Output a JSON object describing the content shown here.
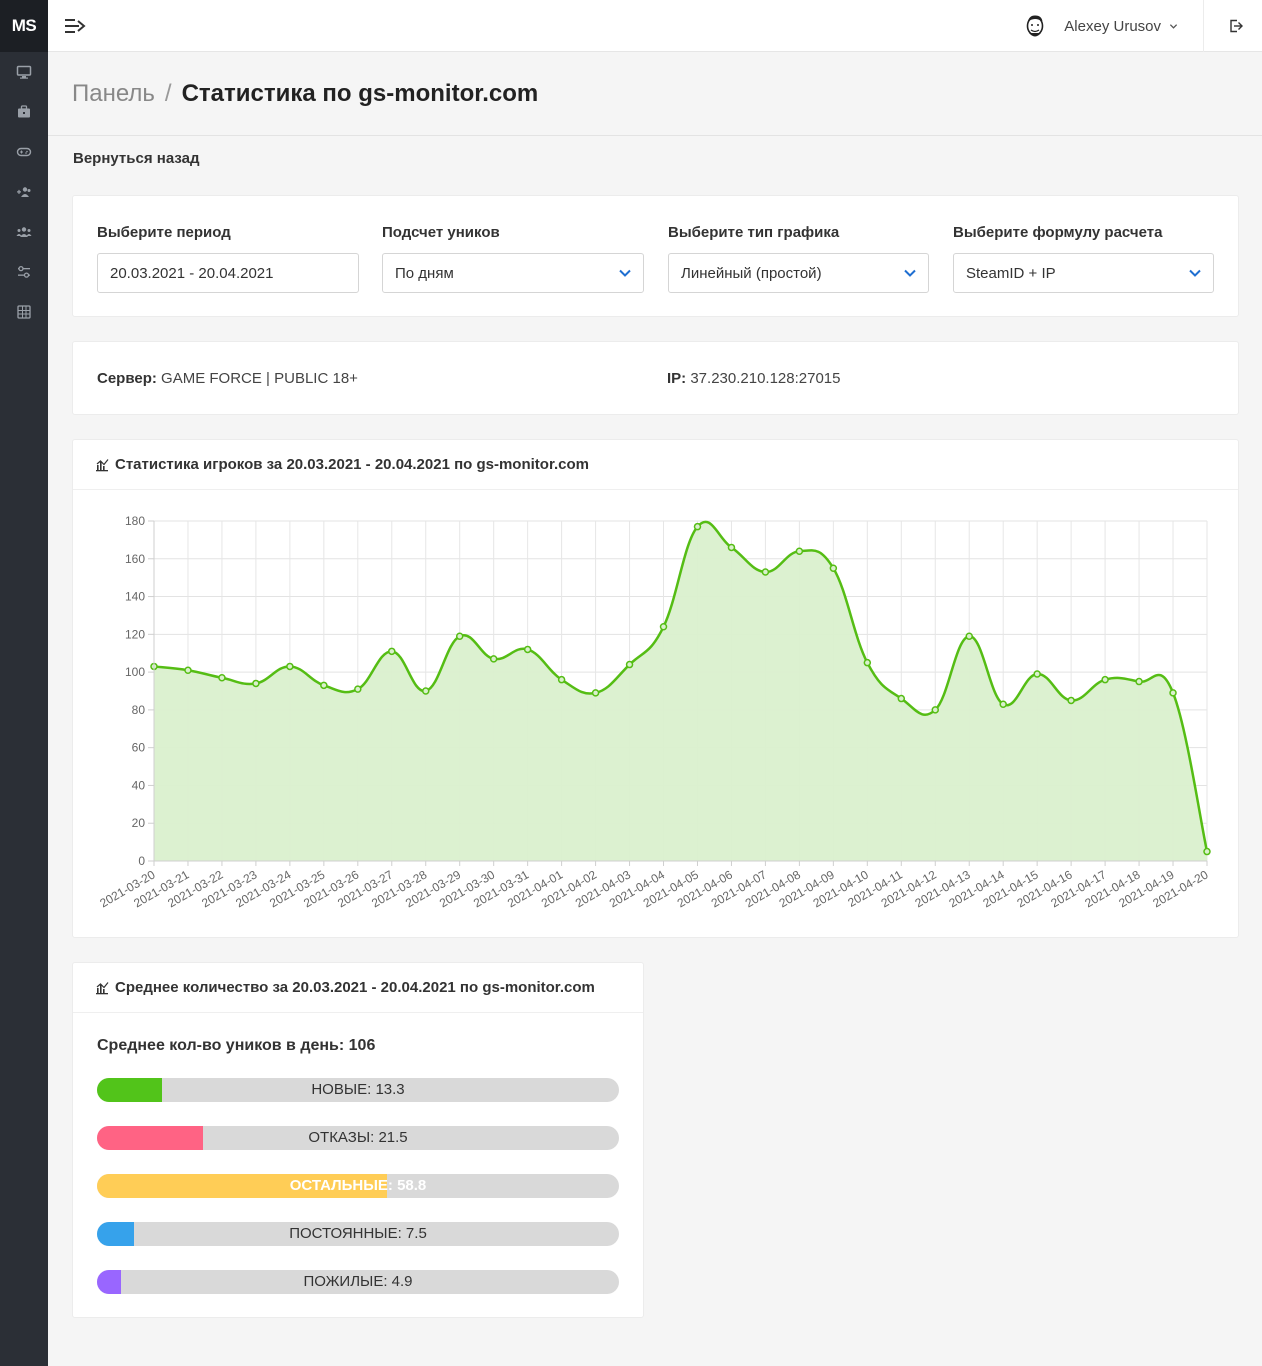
{
  "sidebar": {
    "logo": "MS",
    "icons": [
      "monitor-icon",
      "briefcase-icon",
      "gamepad-icon",
      "users-add-icon",
      "users-icon",
      "sliders-icon",
      "grid-icon"
    ]
  },
  "header": {
    "user_name": "Alexey Urusov"
  },
  "breadcrumb": {
    "root": "Панель",
    "separator": "/",
    "current": "Статистика по gs-monitor.com"
  },
  "back_link": "Вернуться назад",
  "filters": {
    "period": {
      "label": "Выберите период",
      "value": "20.03.2021 - 20.04.2021"
    },
    "unique_count": {
      "label": "Подсчет уников",
      "value": "По дням"
    },
    "chart_type": {
      "label": "Выберите тип графика",
      "value": "Линейный (простой)"
    },
    "formula": {
      "label": "Выберите формулу расчета",
      "value": "SteamID + IP"
    }
  },
  "server_info": {
    "server_label": "Сервер:",
    "server_value": "GAME FORCE | PUBLIC 18+",
    "ip_label": "IP:",
    "ip_value": "37.230.210.128:27015"
  },
  "stats_card": {
    "title": "Статистика игроков за 20.03.2021 - 20.04.2021 по gs-monitor.com"
  },
  "chart_data": {
    "type": "area",
    "x": [
      "2021-03-20",
      "2021-03-21",
      "2021-03-22",
      "2021-03-23",
      "2021-03-24",
      "2021-03-25",
      "2021-03-26",
      "2021-03-27",
      "2021-03-28",
      "2021-03-29",
      "2021-03-30",
      "2021-03-31",
      "2021-04-01",
      "2021-04-02",
      "2021-04-03",
      "2021-04-04",
      "2021-04-05",
      "2021-04-06",
      "2021-04-07",
      "2021-04-08",
      "2021-04-09",
      "2021-04-10",
      "2021-04-11",
      "2021-04-12",
      "2021-04-13",
      "2021-04-14",
      "2021-04-15",
      "2021-04-16",
      "2021-04-17",
      "2021-04-18",
      "2021-04-19",
      "2021-04-20"
    ],
    "values": [
      103,
      101,
      97,
      94,
      103,
      93,
      91,
      111,
      90,
      119,
      107,
      112,
      96,
      89,
      104,
      124,
      177,
      166,
      153,
      164,
      155,
      105,
      86,
      80,
      119,
      83,
      99,
      85,
      96,
      95,
      89,
      5
    ],
    "ylim": [
      0,
      180
    ],
    "yticks": [
      0,
      20,
      40,
      60,
      80,
      100,
      120,
      140,
      160,
      180
    ],
    "grid": true,
    "line_color": "#55bd14",
    "fill_color": "#daf0cd"
  },
  "avg_card": {
    "title": "Среднее количество за 20.03.2021 - 20.04.2021 по gs-monitor.com",
    "summary": "Среднее кол-во уников в день: 106",
    "bars": [
      {
        "label": "НОВЫЕ: 13.3",
        "fraction": 0.125,
        "color": "#52c41a"
      },
      {
        "label": "ОТКАЗЫ: 21.5",
        "fraction": 0.203,
        "color": "#ff6384"
      },
      {
        "label": "ОСТАЛЬНЫЕ: 58.8",
        "fraction": 0.555,
        "color": "#ffcd56"
      },
      {
        "label": "ПОСТОЯННЫЕ: 7.5",
        "fraction": 0.071,
        "color": "#36a2eb"
      },
      {
        "label": "ПОЖИЛЫЕ: 4.9",
        "fraction": 0.046,
        "color": "#9966ff"
      }
    ]
  }
}
